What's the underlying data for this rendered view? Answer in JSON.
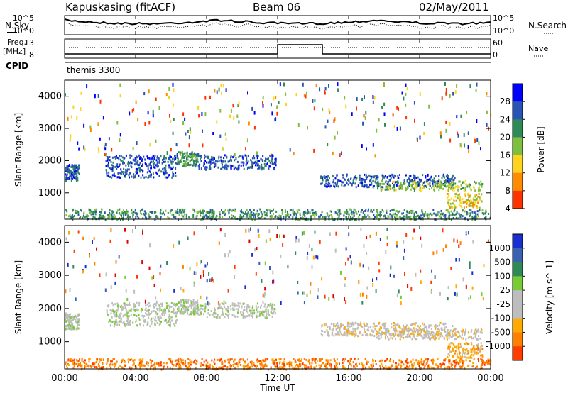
{
  "header": {
    "station": "Kapuskasing (fitACF)",
    "beam": "Beam 06",
    "date": "02/May/2011"
  },
  "strips": {
    "nsky_label": "N.Sky",
    "nsearch_label": "N.Search",
    "freq_label": "Freq.",
    "freq_unit": "[MHz]",
    "nave_label": "Nave",
    "cpid_label": "CPID",
    "cpid_value": "themis 3300",
    "noise_ticks": [
      "10^5",
      "10^0"
    ],
    "freq_ticks": [
      "13",
      "8"
    ],
    "nave_ticks": [
      "60",
      "0"
    ]
  },
  "axes": {
    "ylabel": "Slant Range [km]",
    "yticks": [
      "4000",
      "3000",
      "2000",
      "1000"
    ],
    "xticks": [
      "00:00",
      "04:00",
      "08:00",
      "12:00",
      "16:00",
      "20:00",
      "00:00"
    ],
    "xlabel": "Time UT"
  },
  "colors": {
    "power": [
      "#0000ff",
      "#2a54b4",
      "#2e8b57",
      "#7fbf3f",
      "#ffd21e",
      "#ff8c00",
      "#ff3300"
    ],
    "velocity": [
      "#1a2fd0",
      "#3a62b0",
      "#2e8b57",
      "#77cc33",
      "#bdbdbd",
      "#bdbdbd",
      "#ffaa00",
      "#ff7f00",
      "#ff3d00",
      "#e00000"
    ]
  },
  "chart_data": [
    {
      "type": "heatmap",
      "title": "",
      "xlabel": "",
      "ylabel": "Slant Range [km]",
      "xlim_hours": [
        0,
        24
      ],
      "ylim_km": [
        180,
        4500
      ],
      "colorbar_label": "Power [dB]",
      "colorbar_ticks": [
        "28",
        "24",
        "20",
        "16",
        "12",
        "8",
        "4"
      ],
      "scatter_regions": [
        {
          "t0": 0.0,
          "t1": 0.8,
          "r0": 1400,
          "r1": 1900,
          "level": 1
        },
        {
          "t0": 2.3,
          "t1": 6.3,
          "r0": 1500,
          "r1": 2200,
          "level": 1
        },
        {
          "t0": 6.3,
          "t1": 7.5,
          "r0": 1850,
          "r1": 2300,
          "level": 2
        },
        {
          "t0": 7.5,
          "t1": 11.9,
          "r0": 1750,
          "r1": 2200,
          "level": 1
        },
        {
          "t0": 14.4,
          "t1": 22.0,
          "r0": 1200,
          "r1": 1600,
          "level": 1
        },
        {
          "t0": 17.5,
          "t1": 23.5,
          "r0": 1100,
          "r1": 1400,
          "level": 3
        },
        {
          "t0": 21.5,
          "t1": 23.5,
          "r0": 550,
          "r1": 1000,
          "level": 4
        },
        {
          "t0": 0.0,
          "t1": 24.0,
          "r0": 190,
          "r1": 520,
          "level": 2
        }
      ]
    },
    {
      "type": "heatmap",
      "title": "",
      "xlabel": "Time UT",
      "ylabel": "Slant Range [km]",
      "xlim_hours": [
        0,
        24
      ],
      "ylim_km": [
        180,
        4500
      ],
      "colorbar_label": "Velocity [m s^-1]",
      "colorbar_ticks": [
        "1000",
        "500",
        "100",
        "25",
        "-25",
        "-100",
        "-500",
        "-1000"
      ],
      "scatter_regions": [
        {
          "t0": 0.0,
          "t1": 0.8,
          "r0": 1400,
          "r1": 1900,
          "level": 4
        },
        {
          "t0": 2.3,
          "t1": 6.3,
          "r0": 1500,
          "r1": 2200,
          "level": 4
        },
        {
          "t0": 6.3,
          "t1": 7.5,
          "r0": 1850,
          "r1": 2300,
          "level": 4
        },
        {
          "t0": 7.5,
          "t1": 11.9,
          "r0": 1750,
          "r1": 2200,
          "level": 4
        },
        {
          "t0": 14.4,
          "t1": 22.0,
          "r0": 1200,
          "r1": 1600,
          "level": 5
        },
        {
          "t0": 17.5,
          "t1": 23.5,
          "r0": 1100,
          "r1": 1400,
          "level": 5
        },
        {
          "t0": 21.5,
          "t1": 23.5,
          "r0": 550,
          "r1": 1000,
          "level": 6
        },
        {
          "t0": 0.0,
          "t1": 24.0,
          "r0": 190,
          "r1": 520,
          "level": 7
        }
      ]
    }
  ]
}
